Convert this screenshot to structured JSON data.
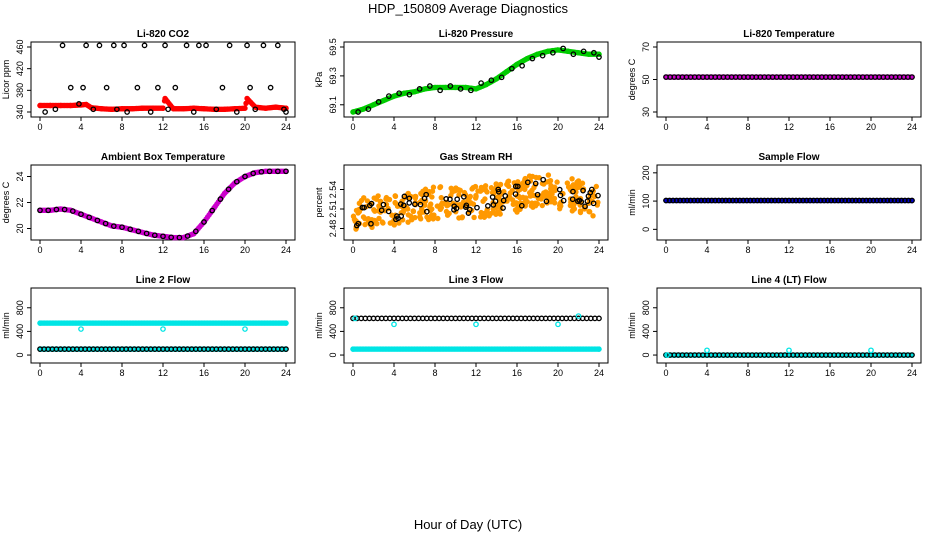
{
  "title": "HDP_150809  Average Diagnostics",
  "xlabel": "Hour of Day (UTC)",
  "chart_data": [
    {
      "type": "scatter",
      "title": "Li-820 CO2",
      "ylabel": "Licor ppm",
      "xlim": [
        0,
        24
      ],
      "xticks": [
        0,
        4,
        8,
        12,
        16,
        20,
        24
      ],
      "ylim": [
        340,
        460
      ],
      "yticks": [
        340,
        380,
        420,
        460
      ],
      "series": [
        {
          "color": "#ff0000",
          "marker": "filled",
          "dense": true,
          "x": [
            0,
            1,
            2,
            3,
            4,
            4.5,
            5,
            6,
            7,
            8,
            9,
            10,
            11,
            12,
            12.2,
            13,
            14,
            15,
            16,
            17,
            18,
            19,
            20,
            20.2,
            21,
            22,
            23,
            24
          ],
          "y": [
            352,
            352,
            352,
            352,
            353,
            354,
            348,
            346,
            345,
            346,
            346,
            347,
            347,
            347,
            365,
            346,
            346,
            347,
            346,
            345,
            345,
            346,
            347,
            365,
            349,
            347,
            349,
            347
          ]
        },
        {
          "color": "#000000",
          "marker": "open",
          "x": [
            0.5,
            1.5,
            2.2,
            3,
            3.8,
            4.2,
            4.5,
            5.2,
            5.8,
            6.5,
            7.2,
            7.5,
            8.2,
            8.5,
            9.5,
            10.2,
            10.8,
            11.5,
            12.2,
            12.5,
            13.2,
            14.3,
            15,
            15.5,
            16.2,
            17.2,
            17.8,
            18.5,
            19.2,
            20.2,
            20.5,
            21,
            21.8,
            22.5,
            23.2,
            23.8,
            24
          ],
          "y": [
            340,
            345,
            463,
            385,
            355,
            385,
            463,
            345,
            463,
            385,
            463,
            345,
            463,
            340,
            385,
            463,
            340,
            385,
            463,
            345,
            385,
            463,
            340,
            463,
            463,
            345,
            385,
            463,
            340,
            463,
            385,
            345,
            463,
            385,
            463,
            345,
            340
          ]
        }
      ]
    },
    {
      "type": "scatter",
      "title": "Li-820 Pressure",
      "ylabel": "kPa",
      "xlim": [
        0,
        24
      ],
      "xticks": [
        0,
        4,
        8,
        12,
        16,
        20,
        24
      ],
      "ylim": [
        69.05,
        69.5
      ],
      "yticks": [
        69.1,
        69.3,
        69.5
      ],
      "series": [
        {
          "color": "#00cc00",
          "marker": "filled",
          "dense": true,
          "x": [
            0,
            1,
            2,
            3,
            4,
            5,
            6,
            7,
            8,
            9,
            10,
            11,
            12,
            13,
            14,
            15,
            16,
            17,
            18,
            19,
            20,
            21,
            22,
            23,
            24
          ],
          "y": [
            69.05,
            69.07,
            69.1,
            69.13,
            69.16,
            69.18,
            69.19,
            69.21,
            69.22,
            69.22,
            69.22,
            69.22,
            69.21,
            69.24,
            69.28,
            69.33,
            69.38,
            69.42,
            69.45,
            69.47,
            69.48,
            69.47,
            69.46,
            69.45,
            69.45
          ]
        },
        {
          "color": "#000000",
          "marker": "open",
          "x": [
            0.5,
            1.5,
            2.5,
            3.5,
            4.5,
            5.5,
            6.5,
            7.5,
            8.5,
            9.5,
            10.5,
            11.5,
            12.5,
            13.5,
            14.5,
            15.5,
            16.5,
            17.5,
            18.5,
            19.5,
            20.5,
            21.5,
            22.5,
            23.5,
            24
          ],
          "y": [
            69.05,
            69.07,
            69.12,
            69.16,
            69.18,
            69.17,
            69.21,
            69.23,
            69.2,
            69.23,
            69.21,
            69.2,
            69.25,
            69.27,
            69.29,
            69.35,
            69.37,
            69.42,
            69.44,
            69.46,
            69.49,
            69.45,
            69.47,
            69.46,
            69.43
          ]
        }
      ]
    },
    {
      "type": "scatter",
      "title": "Li-820 Temperature",
      "ylabel": "degrees C",
      "xlim": [
        0,
        24
      ],
      "xticks": [
        0,
        4,
        8,
        12,
        16,
        20,
        24
      ],
      "ylim": [
        30,
        70
      ],
      "yticks": [
        30,
        50,
        70
      ],
      "series": [
        {
          "color": "#cc00cc",
          "marker": "filled",
          "dense": true,
          "x": [
            0,
            24
          ],
          "y": [
            51.5,
            51.5
          ]
        },
        {
          "color": "#000000",
          "marker": "open",
          "dense_count": 60,
          "x": [
            0,
            24
          ],
          "y": [
            51.5,
            51.5
          ]
        }
      ]
    },
    {
      "type": "scatter",
      "title": "Ambient Box Temperature",
      "ylabel": "degrees C",
      "xlim": [
        0,
        24
      ],
      "xticks": [
        0,
        4,
        8,
        12,
        16,
        20,
        24
      ],
      "ylim": [
        19.5,
        24.5
      ],
      "yticks": [
        20,
        22,
        24
      ],
      "series": [
        {
          "color": "#cc00cc",
          "marker": "filled",
          "dense": true,
          "x": [
            0,
            1,
            2,
            3,
            4,
            5,
            6,
            7,
            8,
            9,
            10,
            11,
            12,
            13,
            14,
            15,
            16,
            17,
            18,
            19,
            20,
            21,
            22,
            23,
            24
          ],
          "y": [
            21.4,
            21.4,
            21.5,
            21.4,
            21.1,
            20.8,
            20.5,
            20.2,
            20.1,
            19.9,
            19.7,
            19.5,
            19.4,
            19.3,
            19.3,
            19.6,
            20.5,
            21.6,
            22.7,
            23.5,
            24.0,
            24.3,
            24.4,
            24.4,
            24.4
          ]
        },
        {
          "color": "#000000",
          "marker": "open",
          "dense_count": 30,
          "x": [
            0,
            1,
            2,
            3,
            4,
            5,
            6,
            7,
            8,
            9,
            10,
            11,
            12,
            13,
            14,
            15,
            16,
            17,
            18,
            19,
            20,
            21,
            22,
            23,
            24
          ],
          "y": [
            21.4,
            21.4,
            21.5,
            21.4,
            21.1,
            20.8,
            20.5,
            20.2,
            20.1,
            19.9,
            19.7,
            19.5,
            19.4,
            19.3,
            19.3,
            19.6,
            20.5,
            21.6,
            22.7,
            23.5,
            24.0,
            24.3,
            24.4,
            24.4,
            24.4
          ]
        }
      ]
    },
    {
      "type": "scatter",
      "title": "Gas Stream RH",
      "ylabel": "percent",
      "xlim": [
        0,
        24
      ],
      "xticks": [
        0,
        4,
        8,
        12,
        16,
        20,
        24
      ],
      "ylim": [
        2.47,
        2.57
      ],
      "yticks": [
        2.48,
        2.51,
        2.54
      ],
      "series": [
        {
          "color": "#ff9900",
          "marker": "filled",
          "noisy": true,
          "noise": 0.025,
          "count": 400,
          "x": [
            0,
            2,
            4,
            6,
            8,
            10,
            12,
            14,
            16,
            18,
            20,
            22,
            24
          ],
          "y": [
            2.5,
            2.505,
            2.51,
            2.515,
            2.52,
            2.52,
            2.52,
            2.525,
            2.53,
            2.54,
            2.535,
            2.53,
            2.52
          ]
        },
        {
          "color": "#000000",
          "marker": "open",
          "noisy": true,
          "noise": 0.018,
          "count": 70,
          "x": [
            0,
            2,
            4,
            6,
            8,
            10,
            12,
            14,
            16,
            18,
            20,
            22,
            24
          ],
          "y": [
            2.5,
            2.505,
            2.51,
            2.515,
            2.52,
            2.52,
            2.52,
            2.525,
            2.53,
            2.54,
            2.535,
            2.53,
            2.52
          ]
        }
      ]
    },
    {
      "type": "scatter",
      "title": "Sample Flow",
      "ylabel": "ml/min",
      "xlim": [
        0,
        24
      ],
      "xticks": [
        0,
        4,
        8,
        12,
        16,
        20,
        24
      ],
      "ylim": [
        -20,
        210
      ],
      "yticks": [
        0,
        100,
        200
      ],
      "series": [
        {
          "color": "#0000cc",
          "marker": "filled",
          "dense": true,
          "x": [
            0,
            24
          ],
          "y": [
            102,
            102
          ]
        },
        {
          "color": "#000000",
          "marker": "open",
          "dense_count": 70,
          "x": [
            0,
            24
          ],
          "y": [
            102,
            102
          ]
        }
      ]
    },
    {
      "type": "scatter",
      "title": "Line 2 Flow",
      "ylabel": "ml/min",
      "xlim": [
        0,
        24
      ],
      "xticks": [
        0,
        4,
        8,
        12,
        16,
        20,
        24
      ],
      "ylim": [
        -50,
        1050
      ],
      "yticks": [
        0,
        400,
        800
      ],
      "series": [
        {
          "color": "#00e5e5",
          "marker": "filled",
          "dense": true,
          "x": [
            0,
            24
          ],
          "y": [
            540,
            540
          ]
        },
        {
          "color": "#00e5e5",
          "marker": "open",
          "x": [
            4,
            12,
            20
          ],
          "y": [
            440,
            440,
            440
          ]
        },
        {
          "color": "#00e5e5",
          "marker": "filled",
          "dense": true,
          "x": [
            0,
            24
          ],
          "y": [
            100,
            100
          ]
        },
        {
          "color": "#000000",
          "marker": "open",
          "dense_count": 60,
          "x": [
            0,
            24
          ],
          "y": [
            100,
            100
          ]
        }
      ]
    },
    {
      "type": "scatter",
      "title": "Line 3 Flow",
      "ylabel": "ml/min",
      "xlim": [
        0,
        24
      ],
      "xticks": [
        0,
        4,
        8,
        12,
        16,
        20,
        24
      ],
      "ylim": [
        -50,
        1050
      ],
      "yticks": [
        0,
        400,
        800
      ],
      "series": [
        {
          "color": "#00e5e5",
          "marker": "filled",
          "dense": true,
          "x": [
            0,
            24
          ],
          "y": [
            100,
            100
          ]
        },
        {
          "color": "#000000",
          "marker": "open",
          "dense_count": 60,
          "x": [
            0,
            24
          ],
          "y": [
            620,
            620
          ]
        },
        {
          "color": "#00e5e5",
          "marker": "open",
          "x": [
            0.2,
            4,
            12,
            20,
            22
          ],
          "y": [
            620,
            520,
            520,
            520,
            660
          ]
        }
      ]
    },
    {
      "type": "scatter",
      "title": "Line 4 (LT) Flow",
      "ylabel": "ml/min",
      "xlim": [
        0,
        24
      ],
      "xticks": [
        0,
        4,
        8,
        12,
        16,
        20,
        24
      ],
      "ylim": [
        -50,
        1050
      ],
      "yticks": [
        0,
        400,
        800
      ],
      "series": [
        {
          "color": "#00e5e5",
          "marker": "filled",
          "dense": true,
          "x": [
            0,
            24
          ],
          "y": [
            0,
            0
          ]
        },
        {
          "color": "#000000",
          "marker": "open",
          "dense_count": 60,
          "x": [
            0,
            24
          ],
          "y": [
            0,
            0
          ]
        },
        {
          "color": "#00e5e5",
          "marker": "open",
          "x": [
            0.1,
            4,
            12,
            20
          ],
          "y": [
            0,
            80,
            80,
            80
          ]
        }
      ]
    }
  ]
}
